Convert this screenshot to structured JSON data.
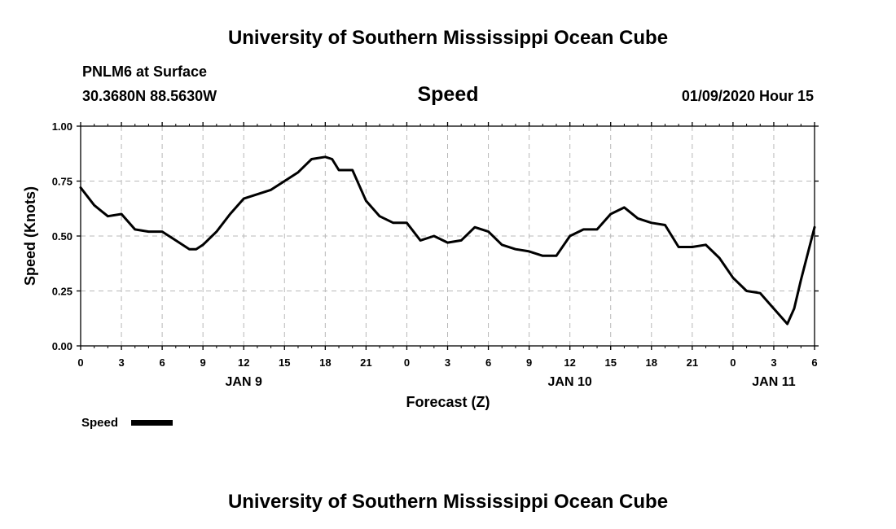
{
  "header": {
    "title_top": "University of Southern Mississippi Ocean Cube",
    "station": "PNLM6 at Surface",
    "coords": "30.3680N 88.5630W",
    "datetime": "01/09/2020 Hour 15"
  },
  "footer": {
    "title_bottom": "University of Southern Mississippi Ocean Cube"
  },
  "legend": {
    "label": "Speed",
    "color": "#000000"
  },
  "chart_data": {
    "type": "line",
    "title": "Speed",
    "xlabel": "Forecast (Z)",
    "ylabel": "Speed (Knots)",
    "xlim": [
      0,
      54
    ],
    "ylim": [
      0,
      1.0
    ],
    "y_ticks": [
      "0.00",
      "0.25",
      "0.50",
      "0.75",
      "1.00"
    ],
    "x_tick_labels": [
      "0",
      "3",
      "6",
      "9",
      "12",
      "15",
      "18",
      "21",
      "0",
      "3",
      "6",
      "9",
      "12",
      "15",
      "18",
      "21",
      "0",
      "3",
      "6"
    ],
    "day_labels": [
      {
        "label": "JAN 9",
        "at": 12
      },
      {
        "label": "JAN 10",
        "at": 36
      },
      {
        "label": "JAN 11",
        "at": 51
      }
    ],
    "grid": true,
    "series": [
      {
        "name": "Speed",
        "color": "#000000",
        "x": [
          0,
          1,
          2,
          3,
          4,
          5,
          6,
          7,
          8,
          8.5,
          9,
          10,
          11,
          12,
          13,
          14,
          15,
          16,
          17,
          18,
          18.5,
          19,
          20,
          21,
          22,
          23,
          24,
          25,
          26,
          27,
          28,
          29,
          30,
          31,
          32,
          33,
          34,
          35,
          36,
          37,
          38,
          39,
          40,
          41,
          42,
          43,
          44,
          45,
          46,
          47,
          48,
          49,
          50,
          51,
          52,
          52.5,
          53,
          54
        ],
        "values": [
          0.72,
          0.64,
          0.59,
          0.6,
          0.53,
          0.52,
          0.52,
          0.48,
          0.44,
          0.44,
          0.46,
          0.52,
          0.6,
          0.67,
          0.69,
          0.71,
          0.75,
          0.79,
          0.85,
          0.86,
          0.85,
          0.8,
          0.8,
          0.66,
          0.59,
          0.56,
          0.56,
          0.48,
          0.5,
          0.47,
          0.48,
          0.54,
          0.52,
          0.46,
          0.44,
          0.43,
          0.41,
          0.41,
          0.5,
          0.53,
          0.53,
          0.6,
          0.63,
          0.58,
          0.56,
          0.55,
          0.45,
          0.45,
          0.46,
          0.4,
          0.31,
          0.25,
          0.24,
          0.17,
          0.1,
          0.17,
          0.3,
          0.54
        ]
      }
    ]
  }
}
